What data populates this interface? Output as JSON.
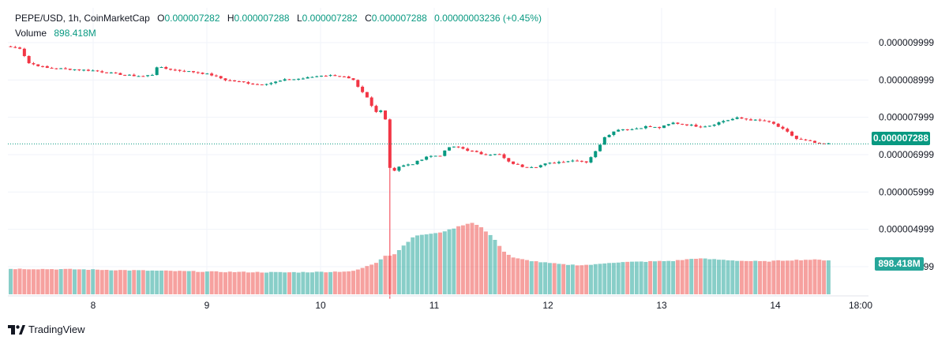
{
  "header": {
    "symbol": "PEPE/USD, 1h, CoinMarketCap",
    "o_label": "O",
    "o_value": "0.000007282",
    "h_label": "H",
    "h_value": "0.000007288",
    "l_label": "L",
    "l_value": "0.000007282",
    "c_label": "C",
    "c_value": "0.000007288",
    "change": "0.00000003236 (+0.45%)"
  },
  "volume_label": "Volume",
  "volume_value": "898.418M",
  "last_price_label": "0.000007288",
  "last_volume_label": "898.418M",
  "footer_brand": "TradingView",
  "colors": {
    "up": "#089981",
    "down": "#f23645",
    "vol_up": "#26a69a",
    "vol_down": "#ef5350",
    "grid": "#f0f3fa"
  },
  "chart_data": {
    "type": "candlestick",
    "interval": "1h",
    "x_ticks": [
      "8",
      "9",
      "10",
      "11",
      "12",
      "13",
      "14",
      "18:00"
    ],
    "y_ticks": [
      "0.000009999",
      "0.000008999",
      "0.000007999",
      "0.000006999",
      "0.000005999",
      "0.000004999",
      "0.000003999"
    ],
    "ylim": [
      2.65e-06,
      1.04e-05
    ],
    "grid": true,
    "price_keyframes": [
      [
        0,
        9.88e-06
      ],
      [
        2,
        9.85e-06
      ],
      [
        4,
        9.45e-06
      ],
      [
        8,
        9.32e-06
      ],
      [
        14,
        9.28e-06
      ],
      [
        18,
        9.25e-06
      ],
      [
        22,
        9.18e-06
      ],
      [
        26,
        9.12e-06
      ],
      [
        29,
        9.1e-06
      ],
      [
        31,
        9.14e-06
      ],
      [
        32,
        9.35e-06
      ],
      [
        34,
        9.3e-06
      ],
      [
        37,
        9.25e-06
      ],
      [
        41,
        9.2e-06
      ],
      [
        44,
        9.13e-06
      ],
      [
        47,
        9e-06
      ],
      [
        50,
        8.95e-06
      ],
      [
        54,
        8.88e-06
      ],
      [
        57,
        8.92e-06
      ],
      [
        60,
        9e-06
      ],
      [
        64,
        9.04e-06
      ],
      [
        68,
        9.12e-06
      ],
      [
        71,
        9.12e-06
      ],
      [
        73,
        9.08e-06
      ],
      [
        75,
        8.98e-06
      ],
      [
        76,
        8.8e-06
      ],
      [
        78,
        8.52e-06
      ],
      [
        79,
        8.3e-06
      ],
      [
        80,
        8.14e-06
      ],
      [
        81,
        8.2e-06
      ],
      [
        82,
        7.95e-06
      ],
      [
        83,
        6.65e-06
      ],
      [
        84,
        6.58e-06
      ],
      [
        85,
        6.68e-06
      ],
      [
        88,
        6.75e-06
      ],
      [
        91,
        6.95e-06
      ],
      [
        94,
        6.98e-06
      ],
      [
        96,
        7.2e-06
      ],
      [
        98,
        7.2e-06
      ],
      [
        100,
        7.12e-06
      ],
      [
        103,
        7.02e-06
      ],
      [
        107,
        7e-06
      ],
      [
        109,
        6.8e-06
      ],
      [
        112,
        6.68e-06
      ],
      [
        115,
        6.68e-06
      ],
      [
        117,
        6.75e-06
      ],
      [
        121,
        6.82e-06
      ],
      [
        124,
        6.85e-06
      ],
      [
        126,
        6.8e-06
      ],
      [
        128,
        7.08e-06
      ],
      [
        130,
        7.48e-06
      ],
      [
        133,
        7.68e-06
      ],
      [
        136,
        7.68e-06
      ],
      [
        139,
        7.75e-06
      ],
      [
        142,
        7.72e-06
      ],
      [
        145,
        7.85e-06
      ],
      [
        148,
        7.8e-06
      ],
      [
        151,
        7.75e-06
      ],
      [
        153,
        7.78e-06
      ],
      [
        156,
        7.9e-06
      ],
      [
        159,
        7.98e-06
      ],
      [
        162,
        7.93e-06
      ],
      [
        165,
        7.9e-06
      ],
      [
        167,
        7.82e-06
      ],
      [
        170,
        7.6e-06
      ],
      [
        172,
        7.42e-06
      ],
      [
        175,
        7.35e-06
      ],
      [
        177,
        7.28e-06
      ],
      [
        179,
        7.29e-06
      ]
    ],
    "volume_keyframes": [
      [
        0,
        2.1
      ],
      [
        15,
        2.05
      ],
      [
        30,
        1.95
      ],
      [
        45,
        1.85
      ],
      [
        60,
        1.8
      ],
      [
        70,
        1.85
      ],
      [
        75,
        1.9
      ],
      [
        78,
        2.3
      ],
      [
        80,
        2.6
      ],
      [
        82,
        3.2
      ],
      [
        83,
        3.2
      ],
      [
        84,
        3.3
      ],
      [
        86,
        4.0
      ],
      [
        88,
        4.7
      ],
      [
        90,
        4.9
      ],
      [
        93,
        5.0
      ],
      [
        96,
        5.3
      ],
      [
        99,
        5.7
      ],
      [
        101,
        5.9
      ],
      [
        103,
        5.5
      ],
      [
        106,
        4.5
      ],
      [
        108,
        3.5
      ],
      [
        110,
        3.0
      ],
      [
        113,
        2.8
      ],
      [
        117,
        2.6
      ],
      [
        121,
        2.45
      ],
      [
        125,
        2.4
      ],
      [
        128,
        2.45
      ],
      [
        131,
        2.6
      ],
      [
        135,
        2.65
      ],
      [
        145,
        2.75
      ],
      [
        150,
        2.95
      ],
      [
        155,
        2.85
      ],
      [
        160,
        2.75
      ],
      [
        165,
        2.7
      ],
      [
        170,
        2.8
      ],
      [
        175,
        2.85
      ],
      [
        179,
        2.8
      ]
    ],
    "volume_peak": 5.9,
    "wick_spike": {
      "index": 83,
      "low": 3.14e-06
    }
  }
}
